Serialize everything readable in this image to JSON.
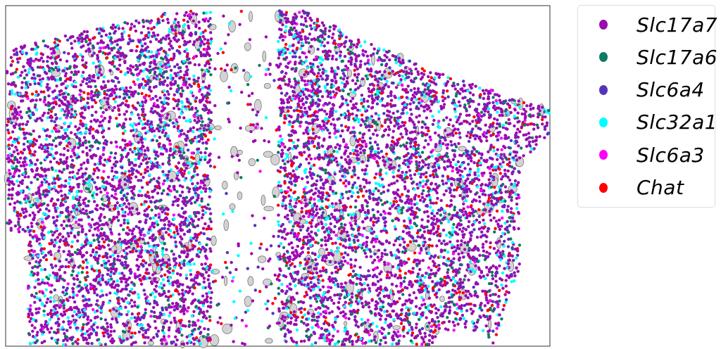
{
  "chart_data": {
    "type": "scatter",
    "title": "",
    "xlabel": "",
    "ylabel": "",
    "axes_visible": false,
    "grid": false,
    "legend_placement": "outside-right",
    "background_cells": {
      "color": "#d3d3d3",
      "edge": "#555555"
    },
    "series": [
      {
        "name": "Slc17a7",
        "color": "#9a0cb0"
      },
      {
        "name": "Slc17a6",
        "color": "#0e7a64"
      },
      {
        "name": "Slc6a4",
        "color": "#5533bb"
      },
      {
        "name": "Slc32a1",
        "color": "#00ffff"
      },
      {
        "name": "Slc6a3",
        "color": "#ff00ff"
      },
      {
        "name": "Chat",
        "color": "#ff0000"
      }
    ]
  }
}
